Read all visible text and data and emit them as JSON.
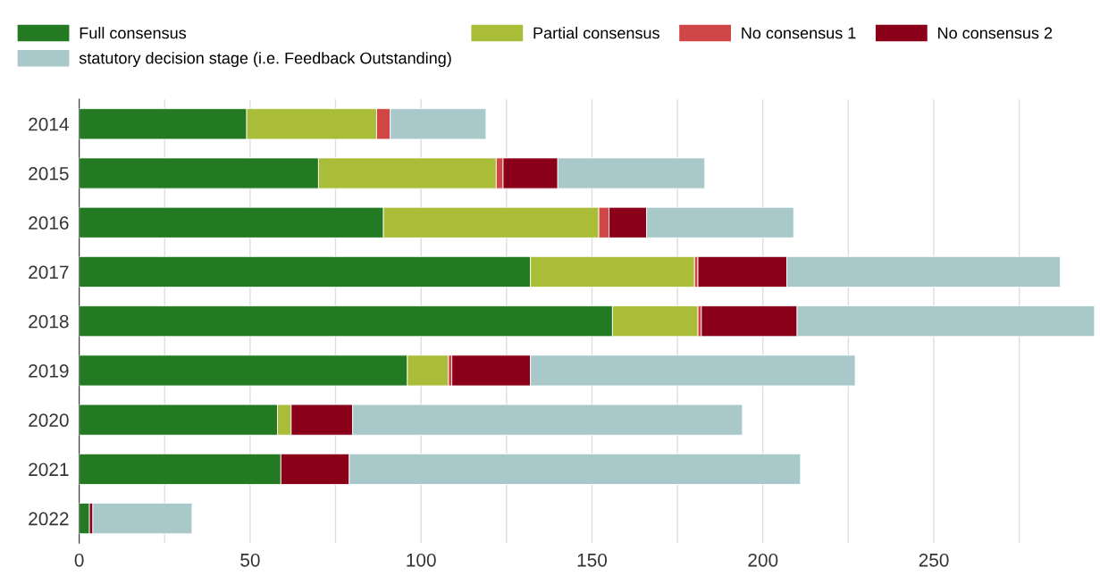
{
  "chart_data": {
    "type": "bar",
    "orientation": "horizontal",
    "stacked": true,
    "categories": [
      "2014",
      "2015",
      "2016",
      "2017",
      "2018",
      "2019",
      "2020",
      "2021",
      "2022"
    ],
    "series": [
      {
        "name": "Full consensus",
        "color": "#237a23",
        "values": [
          49,
          70,
          89,
          132,
          156,
          96,
          58,
          59,
          3
        ]
      },
      {
        "name": "Partial consensus",
        "color": "#a9bd38",
        "values": [
          38,
          52,
          63,
          48,
          25,
          12,
          4,
          0,
          0
        ]
      },
      {
        "name": "No consensus 1",
        "color": "#d04545",
        "values": [
          4,
          2,
          3,
          1,
          1,
          1,
          0,
          0,
          0
        ]
      },
      {
        "name": "No consensus 2",
        "color": "#8b0019",
        "values": [
          0,
          16,
          11,
          26,
          28,
          23,
          18,
          20,
          1
        ]
      },
      {
        "name": "statutory decision stage (i.e. Feedback Outstanding)",
        "color": "#a8c8ca",
        "values": [
          28,
          43,
          43,
          80,
          87,
          95,
          114,
          132,
          29
        ]
      }
    ],
    "xlim": [
      0,
      297
    ],
    "xticks": [
      0,
      {
        "value": 25,
        "label": null
      },
      50,
      {
        "value": 75,
        "label": null
      },
      100,
      {
        "value": 125,
        "label": null
      },
      150,
      {
        "value": 175,
        "label": null
      },
      200,
      {
        "value": 225,
        "label": null
      },
      250,
      {
        "value": 275,
        "label": null
      }
    ],
    "grid": "x",
    "legend": "top"
  }
}
